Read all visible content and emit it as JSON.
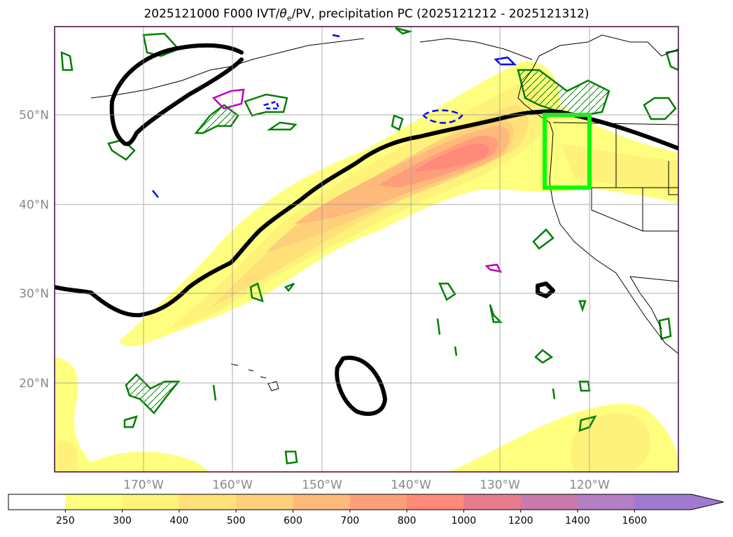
{
  "title": {
    "prefix": "2025121000 F000 IVT/",
    "theta": "θ",
    "theta_sub": "e",
    "suffix": "/PV, precipitation PC (2025121212 - 2025121312)"
  },
  "map": {
    "lon_labels": [
      "170°W",
      "160°W",
      "150°W",
      "140°W",
      "130°W",
      "120°W"
    ],
    "lat_labels": [
      "50°N",
      "40°N",
      "30°N",
      "20°N"
    ]
  },
  "colorbar": {
    "ticks": [
      "250",
      "300",
      "400",
      "500",
      "600",
      "700",
      "800",
      "1000",
      "1200",
      "1400",
      "1600"
    ],
    "colors": [
      "#ffffff",
      "#ffff7f",
      "#fff27a",
      "#ffe079",
      "#ffd07a",
      "#ffb97a",
      "#ff9f7a",
      "#ff8a7a",
      "#e87b8e",
      "#c97aaa",
      "#b47fc4",
      "#a07ad0"
    ]
  },
  "colors": {
    "contour_black": "#000000",
    "contour_green": "#007f00",
    "contour_blue": "#0000ff",
    "contour_magenta": "#bf00bf",
    "box_lime": "#00ff00",
    "frame": "#3a0a3a"
  }
}
